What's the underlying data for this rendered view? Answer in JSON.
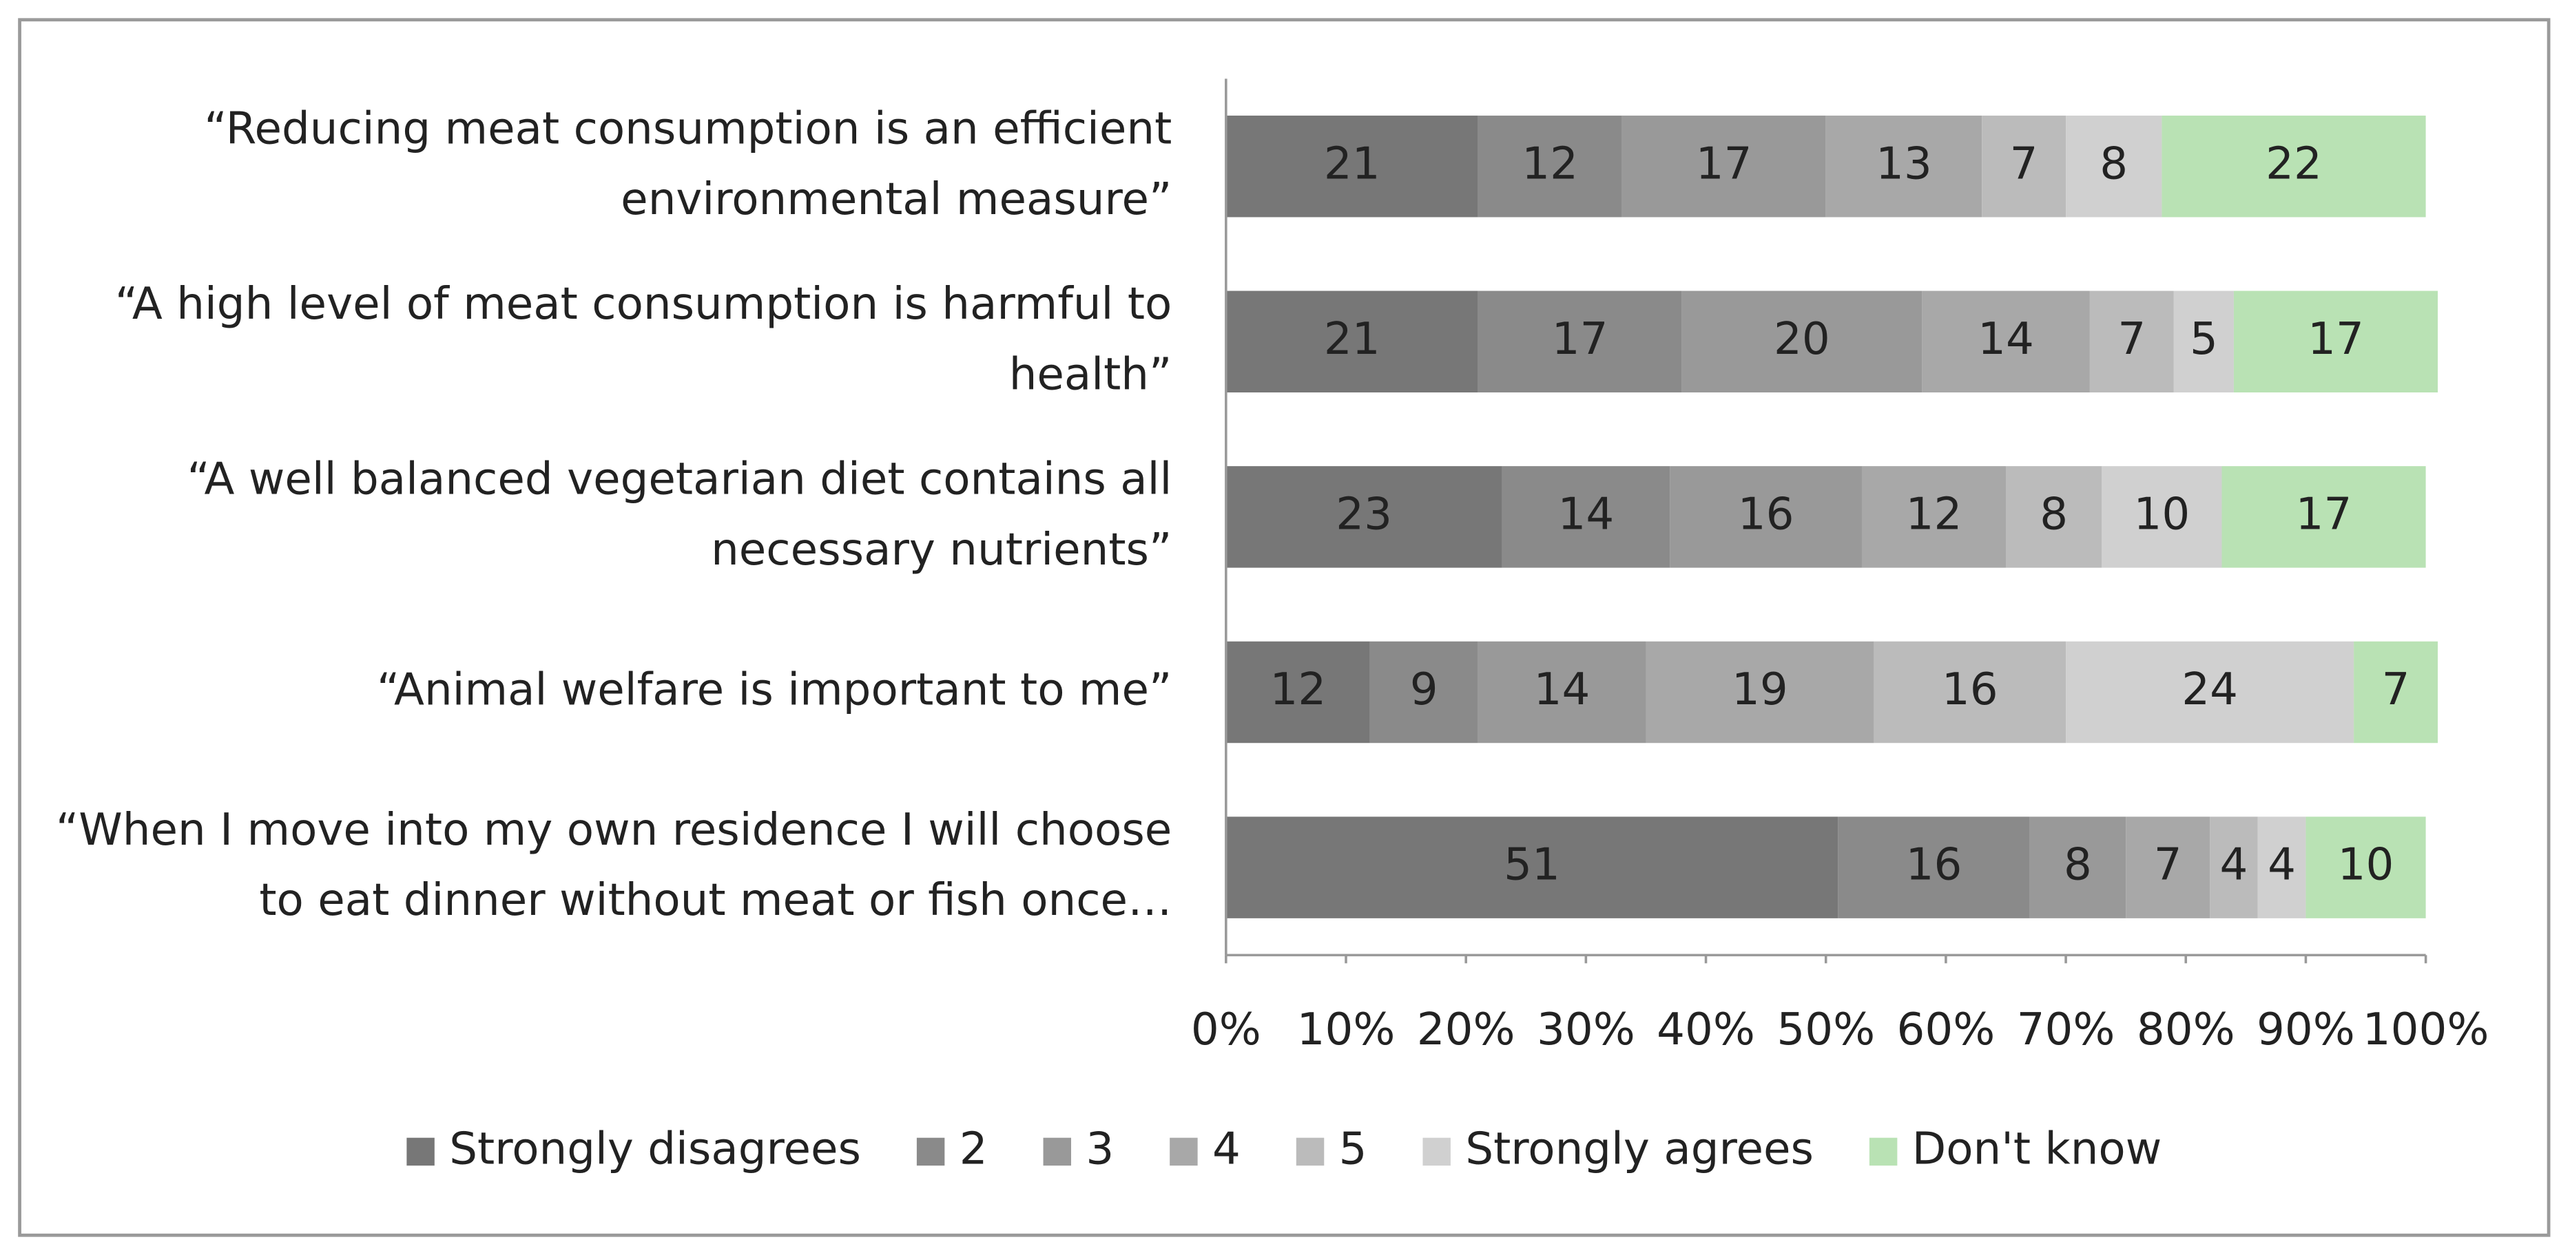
{
  "chart_data": {
    "type": "stacked-bar-horizontal",
    "categories": [
      "“Reducing meat consumption is an efficient environmental measure”",
      "“A high level of meat consumption is harmful to health”",
      "“A well balanced vegetarian diet contains all necessary nutrients”",
      "“Animal welfare is important to me”",
      "“When I move into my own residence I will choose to eat dinner without meat or fish once…"
    ],
    "series": [
      {
        "name": "Strongly disagrees",
        "color": "#777777",
        "values": [
          21,
          21,
          23,
          12,
          51
        ]
      },
      {
        "name": "2",
        "color": "#8a8a8a",
        "values": [
          12,
          17,
          14,
          9,
          16
        ]
      },
      {
        "name": "3",
        "color": "#999999",
        "values": [
          17,
          20,
          16,
          14,
          8
        ]
      },
      {
        "name": "4",
        "color": "#a8a8a8",
        "values": [
          13,
          14,
          12,
          19,
          7
        ]
      },
      {
        "name": "5",
        "color": "#bbbbbb",
        "values": [
          7,
          7,
          8,
          16,
          4
        ]
      },
      {
        "name": "Strongly agrees",
        "color": "#d0d0d0",
        "values": [
          8,
          5,
          10,
          24,
          4
        ]
      },
      {
        "name": "Don't know",
        "color": "#b9e2b4",
        "values": [
          22,
          17,
          17,
          7,
          10
        ]
      }
    ],
    "xlim": [
      0,
      100
    ],
    "xticks": [
      {
        "value": 0,
        "label": "0%"
      },
      {
        "value": 10,
        "label": "10%"
      },
      {
        "value": 20,
        "label": "20%"
      },
      {
        "value": 30,
        "label": "30%"
      },
      {
        "value": 40,
        "label": "40%"
      },
      {
        "value": 50,
        "label": "50%"
      },
      {
        "value": 60,
        "label": "60%"
      },
      {
        "value": 70,
        "label": "70%"
      },
      {
        "value": 80,
        "label": "80%"
      },
      {
        "value": 90,
        "label": "90%"
      },
      {
        "value": 100,
        "label": "100%"
      }
    ],
    "legend": "bottom"
  }
}
